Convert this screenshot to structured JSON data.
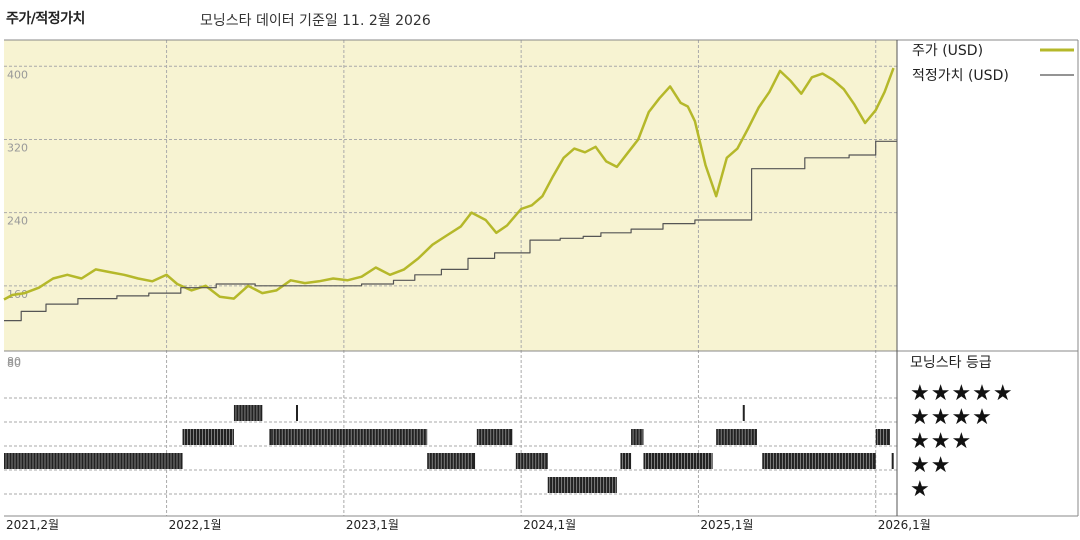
{
  "header": {
    "title": "주가/적정가치",
    "date_label": "모닝스타 데이터 기준일 11. 2월 2026"
  },
  "colors": {
    "price": "#b5b82a",
    "fair_value": "#555555",
    "panel_bg": "#f7f3d2",
    "grid": "#aaaaaa"
  },
  "chart_data": [
    {
      "type": "line",
      "ylim": [
        80,
        420
      ],
      "y_ticks": [
        "80",
        "160",
        "240",
        "320",
        "400"
      ],
      "y_tick_values": [
        80,
        160,
        240,
        320,
        400
      ],
      "x_ticks": [
        "2021,2월",
        "2022,1월",
        "2023,1월",
        "2024,1월",
        "2025,1월",
        "2026,1월"
      ],
      "x_tick_values": [
        2021.083,
        2022.0,
        2023.0,
        2024.0,
        2025.0,
        2026.0
      ],
      "xlim": [
        2021.083,
        2026.12
      ],
      "grid": true,
      "legend_position": "right",
      "series": [
        {
          "name": "주가 (USD)",
          "x": [
            2021.083,
            2021.13,
            2021.2,
            2021.28,
            2021.36,
            2021.44,
            2021.52,
            2021.6,
            2021.68,
            2021.76,
            2021.84,
            2021.92,
            2022.0,
            2022.06,
            2022.14,
            2022.22,
            2022.3,
            2022.38,
            2022.46,
            2022.54,
            2022.62,
            2022.7,
            2022.78,
            2022.86,
            2022.94,
            2023.02,
            2023.1,
            2023.18,
            2023.26,
            2023.34,
            2023.42,
            2023.5,
            2023.58,
            2023.66,
            2023.72,
            2023.8,
            2023.86,
            2023.92,
            2024.0,
            2024.06,
            2024.12,
            2024.18,
            2024.24,
            2024.3,
            2024.36,
            2024.42,
            2024.48,
            2024.54,
            2024.6,
            2024.66,
            2024.72,
            2024.78,
            2024.84,
            2024.9,
            2024.94,
            2024.98,
            2025.04,
            2025.1,
            2025.16,
            2025.22,
            2025.28,
            2025.34,
            2025.4,
            2025.46,
            2025.52,
            2025.58,
            2025.64,
            2025.7,
            2025.76,
            2025.82,
            2025.88,
            2025.94,
            2026.0,
            2026.05,
            2026.1
          ],
          "values": [
            145,
            150,
            152,
            158,
            168,
            172,
            168,
            178,
            175,
            172,
            168,
            165,
            172,
            162,
            155,
            160,
            148,
            146,
            160,
            152,
            155,
            166,
            163,
            165,
            168,
            166,
            170,
            180,
            172,
            178,
            190,
            205,
            215,
            225,
            240,
            232,
            218,
            226,
            244,
            248,
            258,
            280,
            300,
            310,
            306,
            312,
            296,
            290,
            305,
            320,
            350,
            365,
            378,
            360,
            356,
            340,
            292,
            258,
            300,
            310,
            332,
            355,
            372,
            395,
            384,
            370,
            388,
            392,
            385,
            375,
            358,
            338,
            352,
            372,
            398
          ]
        },
        {
          "name": "적정가치 (USD)",
          "x": [
            2021.083,
            2021.18,
            2021.32,
            2021.5,
            2021.72,
            2021.9,
            2022.08,
            2022.28,
            2022.5,
            2022.72,
            2022.95,
            2023.1,
            2023.28,
            2023.4,
            2023.55,
            2023.7,
            2023.85,
            2024.05,
            2024.22,
            2024.35,
            2024.45,
            2024.62,
            2024.8,
            2024.98,
            2025.1,
            2025.3,
            2025.6,
            2025.85,
            2026.0,
            2026.12
          ],
          "values": [
            122,
            132,
            140,
            146,
            149,
            152,
            158,
            162,
            160,
            160,
            160,
            162,
            166,
            172,
            178,
            190,
            196,
            210,
            212,
            214,
            218,
            222,
            228,
            232,
            232,
            288,
            300,
            303,
            318,
            318
          ]
        }
      ]
    },
    {
      "type": "table",
      "title": "모닝스타 등급",
      "rows": [
        "★★★★★",
        "★★★★",
        "★★★",
        "★★",
        "★"
      ],
      "rating_periods": [
        {
          "stars": 2,
          "start": 2021.083,
          "end": 2022.09
        },
        {
          "stars": 3,
          "start": 2022.09,
          "end": 2022.38
        },
        {
          "stars": 4,
          "start": 2022.38,
          "end": 2022.54
        },
        {
          "stars": 3,
          "start": 2022.58,
          "end": 2022.6
        },
        {
          "stars": 4,
          "start": 2022.73,
          "end": 2022.74
        },
        {
          "stars": 3,
          "start": 2022.59,
          "end": 2023.47
        },
        {
          "stars": 2,
          "start": 2023.47,
          "end": 2023.74
        },
        {
          "stars": 3,
          "start": 2023.75,
          "end": 2023.95
        },
        {
          "stars": 2,
          "start": 2023.97,
          "end": 2024.15
        },
        {
          "stars": 1,
          "start": 2024.15,
          "end": 2024.54
        },
        {
          "stars": 2,
          "start": 2024.56,
          "end": 2024.62
        },
        {
          "stars": 3,
          "start": 2024.62,
          "end": 2024.69
        },
        {
          "stars": 2,
          "start": 2024.69,
          "end": 2025.08
        },
        {
          "stars": 3,
          "start": 2025.1,
          "end": 2025.33
        },
        {
          "stars": 4,
          "start": 2025.25,
          "end": 2025.26
        },
        {
          "stars": 2,
          "start": 2025.36,
          "end": 2026.0
        },
        {
          "stars": 3,
          "start": 2026.0,
          "end": 2026.08
        },
        {
          "stars": 2,
          "start": 2026.09,
          "end": 2026.1
        }
      ]
    }
  ]
}
